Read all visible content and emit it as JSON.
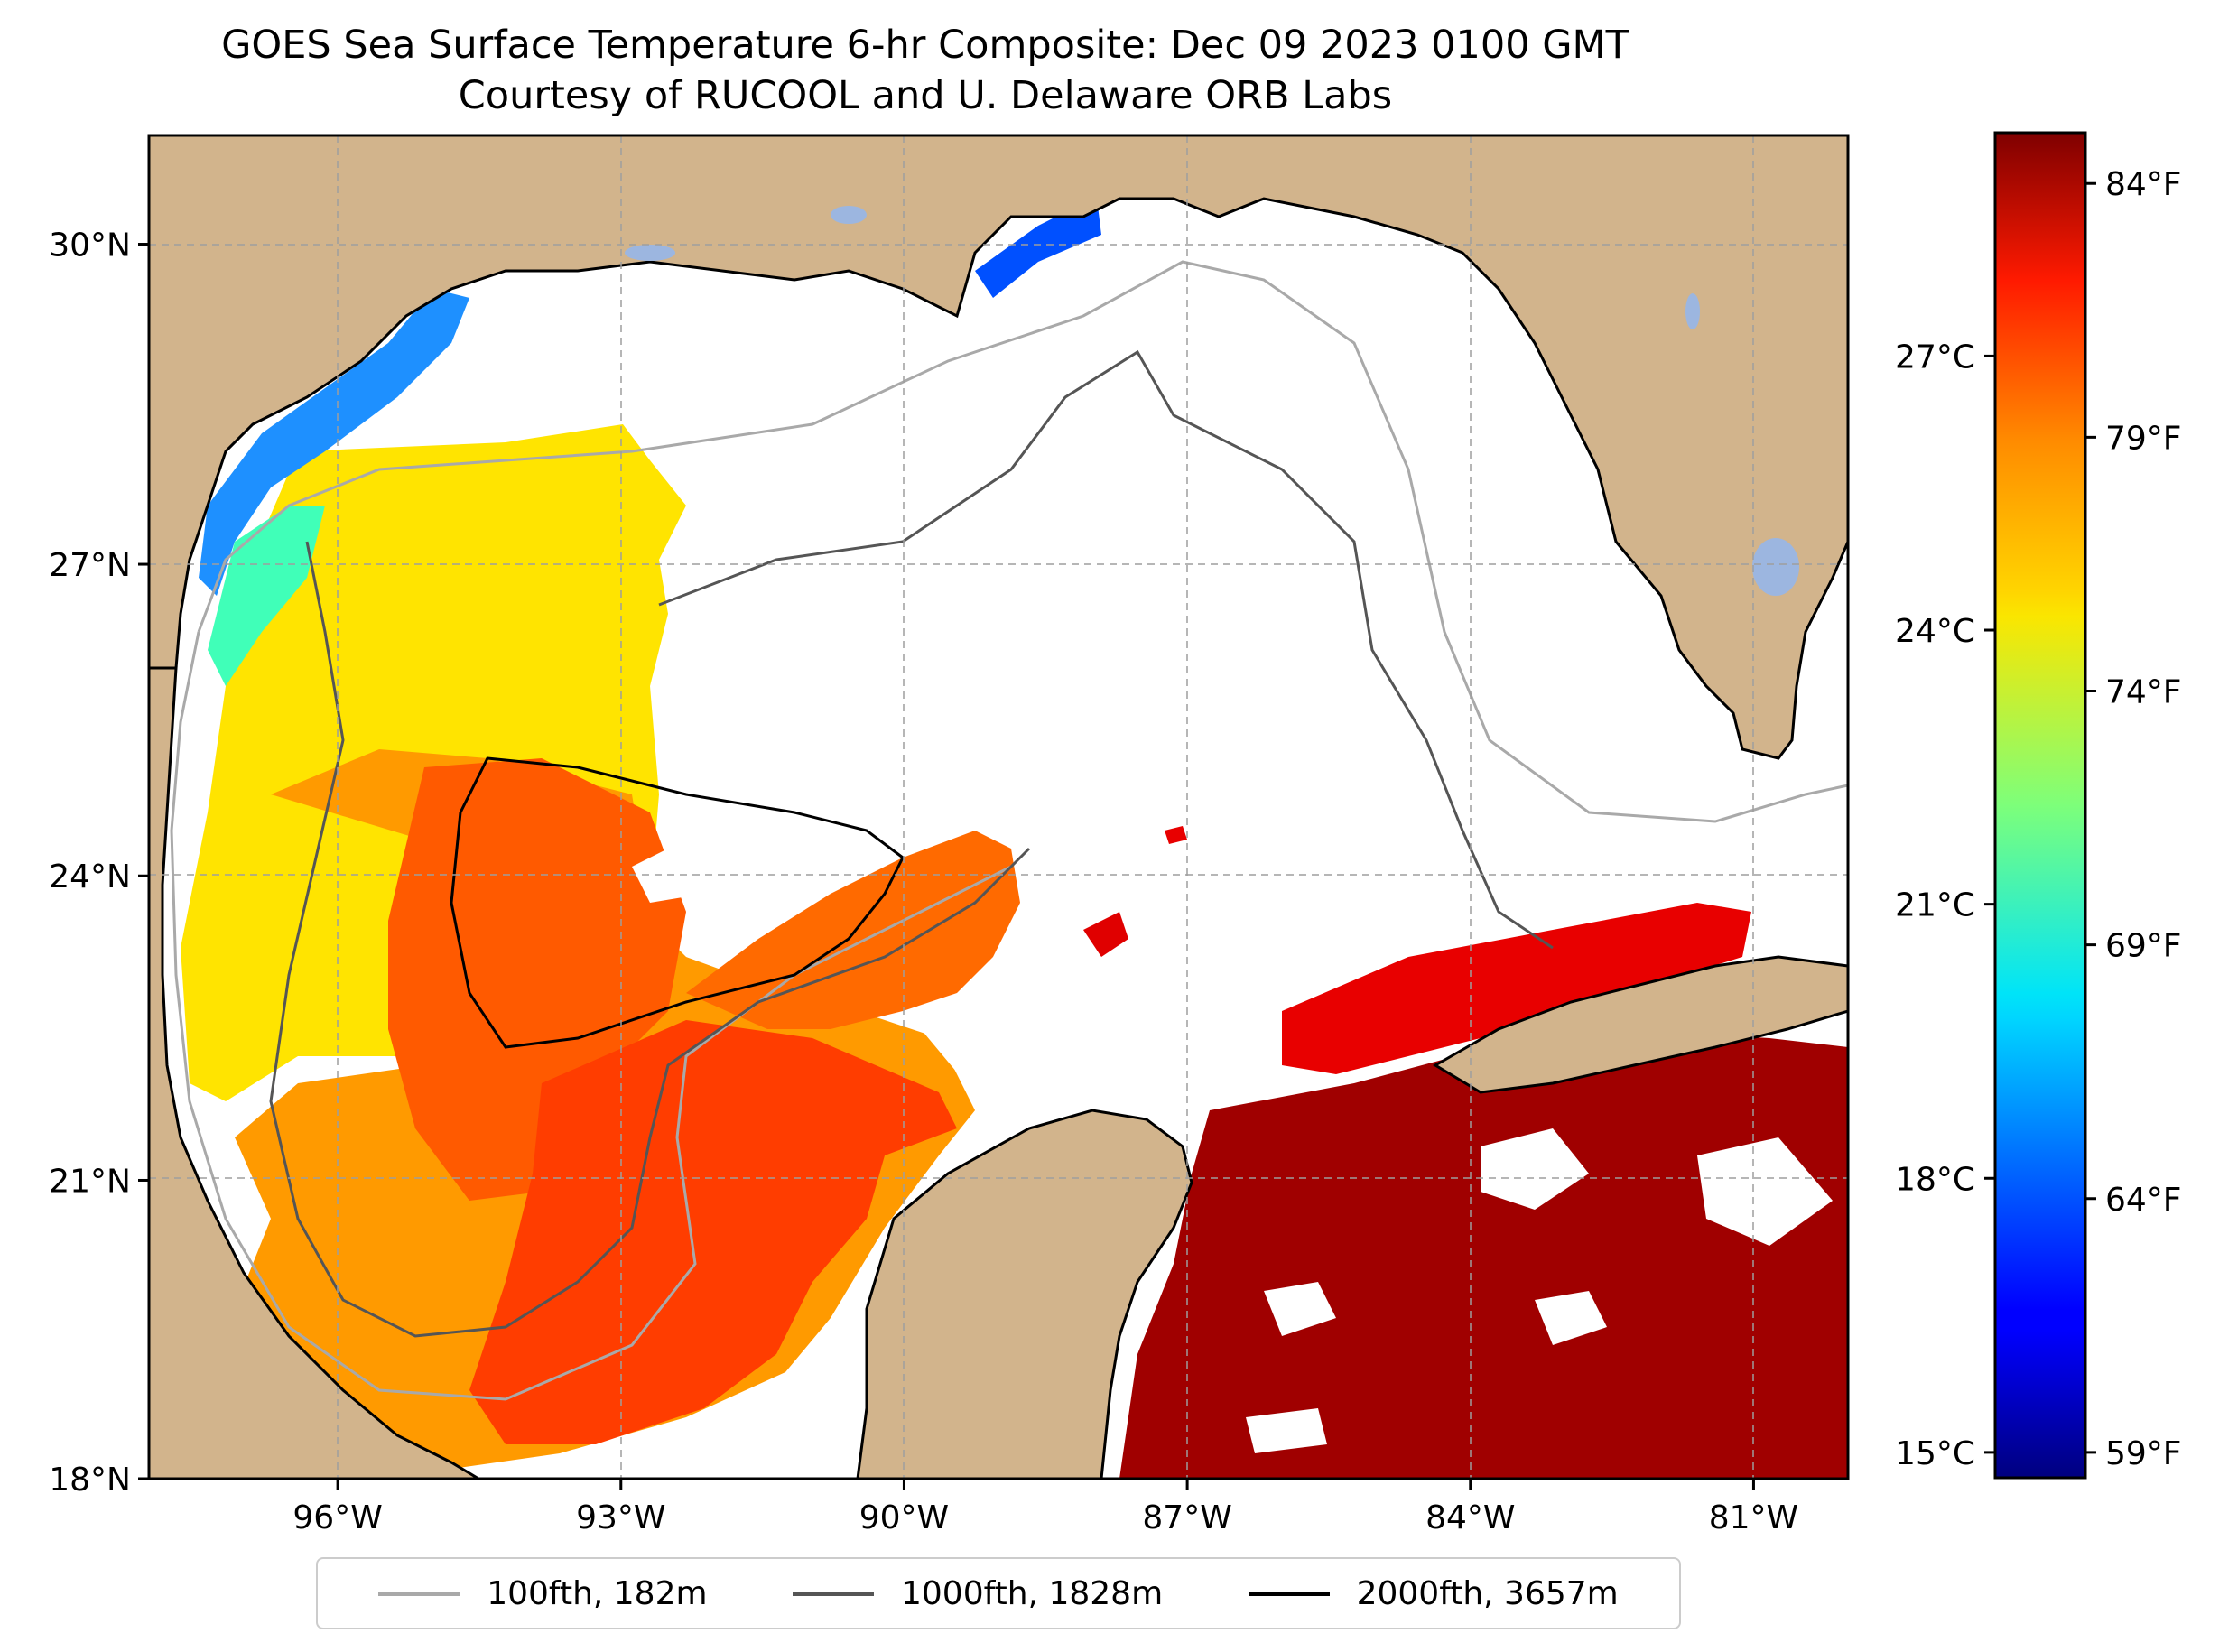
{
  "title": {
    "line1": "GOES Sea Surface Temperature 6-hr Composite: Dec 09 2023 0100 GMT",
    "line2": "Courtesy of RUCOOL and U. Delaware ORB Labs"
  },
  "map": {
    "lon_range": [
      -98.0,
      -80.0
    ],
    "lat_range": [
      18.0,
      31.0
    ],
    "lon_ticks": [
      {
        "value": -96,
        "label": "96°W"
      },
      {
        "value": -93,
        "label": "93°W"
      },
      {
        "value": -90,
        "label": "90°W"
      },
      {
        "value": -87,
        "label": "87°W"
      },
      {
        "value": -84,
        "label": "84°W"
      },
      {
        "value": -81,
        "label": "81°W"
      }
    ],
    "lat_ticks": [
      {
        "value": 30,
        "label": "30°N"
      },
      {
        "value": 27,
        "label": "27°N"
      },
      {
        "value": 24,
        "label": "24°N"
      },
      {
        "value": 21,
        "label": "21°N"
      },
      {
        "value": 18,
        "label": "18°N"
      }
    ],
    "land_color": "#d2b48c",
    "water_color": "#ffffff",
    "inland_water_color": "#9cb6e0",
    "gridlines": true
  },
  "colorbar": {
    "colormap": "jet",
    "celsius_ticks": [
      {
        "value": 15,
        "label": "15°C"
      },
      {
        "value": 18,
        "label": "18°C"
      },
      {
        "value": 21,
        "label": "21°C"
      },
      {
        "value": 24,
        "label": "24°C"
      },
      {
        "value": 27,
        "label": "27°C"
      }
    ],
    "fahrenheit_ticks": [
      {
        "value": 59,
        "label": "59°F"
      },
      {
        "value": 64,
        "label": "64°F"
      },
      {
        "value": 69,
        "label": "69°F"
      },
      {
        "value": 74,
        "label": "74°F"
      },
      {
        "value": 79,
        "label": "79°F"
      },
      {
        "value": 84,
        "label": "84°F"
      }
    ],
    "fahrenheit_range": [
      58.5,
      85.0
    ]
  },
  "legend": {
    "items": [
      {
        "label": "100fth, 182m",
        "color": "#a9a9a9"
      },
      {
        "label": "1000fth, 1828m",
        "color": "#555555"
      },
      {
        "label": "2000fth, 3657m",
        "color": "#000000"
      }
    ],
    "placement": "bottom-center"
  }
}
